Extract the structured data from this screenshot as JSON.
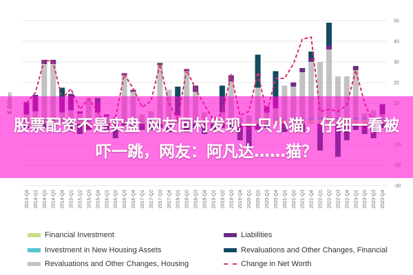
{
  "chart_data": {
    "type": "bar",
    "ylabel": "€ Billion",
    "ylim": [
      -30,
      50
    ],
    "yticks": [
      -30,
      -20,
      -10,
      0,
      10,
      20,
      30,
      40,
      50
    ],
    "grid": true,
    "legend_position": "bottom",
    "categories": [
      "2013-Q4",
      "2014-Q1",
      "2014-Q2",
      "2014-Q3",
      "2014-Q4",
      "2015-Q1",
      "2015-Q2",
      "2015-Q3",
      "2015-Q4",
      "2016-Q1",
      "2016-Q2",
      "2016-Q3",
      "2016-Q4",
      "2017-Q1",
      "2017-Q2",
      "2017-Q3",
      "2017-Q4",
      "2018-Q1",
      "2018-Q2",
      "2018-Q3",
      "2018-Q4",
      "2019-Q1",
      "2019-Q2",
      "2019-Q3",
      "2019-Q4",
      "2020-Q1",
      "2020-Q2",
      "2020-Q3",
      "2020-Q4",
      "2021-Q1",
      "2021-Q2",
      "2021-Q3",
      "2021-Q4",
      "2022-Q1",
      "2022-Q2",
      "2022-Q3",
      "2022-Q4",
      "2023-Q1",
      "2023-Q2",
      "2023-Q3",
      "2023-Q4"
    ],
    "series": [
      {
        "name": "Financial Investment",
        "type": "bar",
        "color": "#c8e08a",
        "values": [
          1,
          1.5,
          1.5,
          1.5,
          1,
          1,
          1.5,
          1,
          1,
          1,
          1,
          1,
          1,
          1,
          1.5,
          1,
          1,
          1.5,
          1,
          1,
          1,
          1,
          1,
          1,
          1,
          1.5,
          2,
          2,
          2,
          2,
          2,
          2,
          2,
          2,
          2,
          2,
          2,
          2,
          2,
          1.5,
          1.5
        ]
      },
      {
        "name": "Investment in New Housing Assets",
        "type": "bar",
        "color": "#57c4d2",
        "values": [
          0.5,
          0.5,
          0.5,
          0.5,
          0.5,
          0.5,
          0.5,
          0.5,
          0.5,
          0.5,
          0.5,
          0.5,
          0.5,
          0.5,
          0.5,
          0.5,
          0.5,
          0.5,
          0.5,
          0.5,
          0.5,
          0.5,
          0.5,
          0.5,
          0.5,
          0.5,
          0.5,
          0.5,
          0.5,
          0.5,
          1,
          1,
          1,
          1,
          1,
          1,
          1,
          1,
          1,
          1,
          1
        ]
      },
      {
        "name": "Revaluations and Other Changes, Housing",
        "type": "bar",
        "color": "#c2c2c2",
        "values": [
          3,
          4,
          27,
          27,
          4,
          5,
          3,
          11,
          4,
          2,
          2,
          22,
          14,
          3,
          4,
          27,
          15,
          2,
          24,
          14,
          4,
          2,
          4,
          19,
          2,
          2,
          15,
          3,
          5,
          16,
          15,
          22,
          27,
          27,
          33,
          20,
          20,
          23,
          2,
          4,
          2
        ]
      },
      {
        "name": "Liabilities",
        "type": "bar",
        "color": "#6b2d84",
        "values": [
          6,
          8,
          2,
          2,
          7,
          8,
          1,
          -2,
          5,
          1,
          -2,
          1,
          1,
          -1,
          -1,
          1,
          -2,
          1,
          1,
          3,
          -2,
          -1,
          -2,
          3,
          -3,
          -3,
          -3,
          3,
          5,
          -2,
          2,
          2,
          2,
          -3,
          2,
          -3,
          -3,
          2,
          -3,
          -5,
          5
        ]
      },
      {
        "name": "Revaluations and Other Changes, Financial",
        "type": "bar",
        "color": "#134b60",
        "values": [
          -2,
          -3,
          -2,
          -2,
          5,
          -3,
          -5,
          -1,
          2,
          -3,
          -5,
          -1,
          -2,
          -2,
          -2,
          -2,
          -2,
          13,
          -4,
          -2,
          -3,
          -2,
          13,
          -2,
          -5,
          -9,
          16,
          -2,
          13,
          -2,
          -2,
          -4,
          3,
          -10,
          11,
          -13,
          -5,
          -3,
          -2,
          -2,
          -2
        ]
      },
      {
        "name": "Change in Net Worth",
        "type": "line",
        "color": "#d6316f",
        "values": [
          10,
          15,
          31,
          30,
          12,
          17,
          7,
          12,
          6,
          -2,
          3,
          24,
          17,
          8,
          11,
          29,
          10,
          2,
          26,
          17,
          9,
          2,
          5,
          24,
          4,
          6,
          25,
          5,
          22,
          22,
          29,
          41,
          42,
          6,
          7,
          6,
          9,
          26,
          10,
          0,
          4
        ]
      }
    ]
  },
  "overlay_caption": "股票配资不是实盘 网友回村发现一只小猫，仔细一看被吓一跳，网友：阿凡达……猫？"
}
